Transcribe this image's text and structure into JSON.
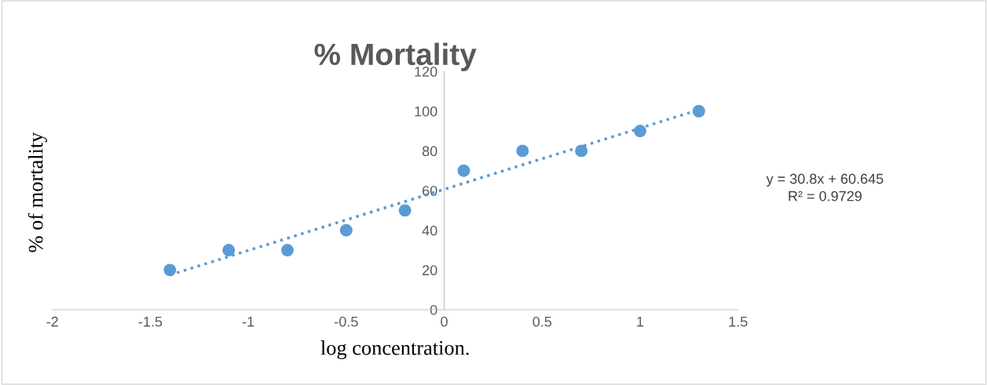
{
  "chart_data": {
    "type": "scatter",
    "title": "% Mortality",
    "xlabel": "log concentration.",
    "ylabel": "% of mortality",
    "annotations": [
      "y = 30.8x + 60.645\nR² = 0.9729"
    ],
    "grid": false,
    "xlim": [
      -2,
      1.5
    ],
    "xticks": [
      -2,
      -1.5,
      -1,
      -0.5,
      0,
      0.5,
      1,
      1.5
    ],
    "ylim": [
      0,
      120
    ],
    "yticks": [
      0,
      20,
      40,
      60,
      80,
      100,
      120
    ],
    "series": [
      {
        "color": "#5b9bd5",
        "marker": "circle",
        "x": [
          -1.4,
          -1.1,
          -0.8,
          -0.5,
          -0.2,
          0.1,
          0.4,
          0.7,
          1.0,
          1.3
        ],
        "values": [
          20,
          30,
          30,
          40,
          50,
          70,
          80,
          80,
          90,
          100
        ]
      },
      {
        "type": "line",
        "color": "#5b9bd5",
        "marker": "none",
        "line_style": "dotted",
        "x": [
          -1.4,
          1.3
        ],
        "values": [
          17.5,
          100.7
        ]
      }
    ]
  }
}
